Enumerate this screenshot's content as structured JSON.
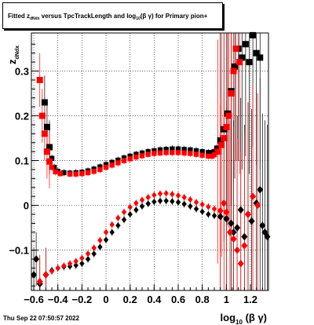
{
  "title": {
    "prefix": "Fitted  z",
    "sub1": "dNdx",
    "middle": " versus TpcTrackLength and log",
    "sub2": "10",
    "suffix": "(β  γ) for Primary pion+"
  },
  "footer": {
    "date": "Thu Sep 22 07:50:57 2022"
  },
  "chart_data": {
    "type": "scatter",
    "xlabel": "log10(β γ)",
    "ylabel": "zdNdx",
    "xlim": [
      -0.62,
      1.35
    ],
    "ylim": [
      -0.19,
      0.385
    ],
    "grid": true,
    "x_ticks": [
      -0.6,
      -0.4,
      -0.2,
      0,
      0.2,
      0.4,
      0.6,
      0.8,
      1,
      1.2
    ],
    "x_tick_labels": [
      "−0.6",
      "−0.4",
      "−0.2",
      "0",
      "0.2",
      "0.4",
      "0.6",
      "0.8",
      "1",
      "1.2"
    ],
    "y_ticks": [
      -0.1,
      0,
      0.1,
      0.2,
      0.3
    ],
    "y_tick_labels": [
      "−0.1",
      "0",
      "0.1",
      "0.2",
      "0.3"
    ],
    "series": [
      {
        "color": "#000000",
        "marker": "square",
        "points": [
          [
            -0.51,
            0.23
          ],
          [
            -0.49,
            0.175
          ],
          [
            -0.47,
            0.13
          ],
          [
            -0.45,
            0.105
          ],
          [
            -0.43,
            0.085
          ],
          [
            -0.4,
            0.076
          ],
          [
            -0.35,
            0.073
          ],
          [
            -0.3,
            0.072
          ],
          [
            -0.25,
            0.073
          ],
          [
            -0.2,
            0.074
          ],
          [
            -0.15,
            0.077
          ],
          [
            -0.1,
            0.081
          ],
          [
            -0.05,
            0.086
          ],
          [
            0,
            0.091
          ],
          [
            0.05,
            0.096
          ],
          [
            0.1,
            0.101
          ],
          [
            0.15,
            0.106
          ],
          [
            0.2,
            0.11
          ],
          [
            0.25,
            0.114
          ],
          [
            0.3,
            0.117
          ],
          [
            0.35,
            0.12
          ],
          [
            0.4,
            0.122
          ],
          [
            0.45,
            0.124
          ],
          [
            0.5,
            0.125
          ],
          [
            0.55,
            0.126
          ],
          [
            0.6,
            0.126
          ],
          [
            0.65,
            0.125
          ],
          [
            0.7,
            0.124
          ],
          [
            0.75,
            0.122
          ],
          [
            0.8,
            0.12
          ],
          [
            0.85,
            0.118
          ],
          [
            0.88,
            0.118
          ],
          [
            0.9,
            0.12
          ],
          [
            0.92,
            0.128
          ],
          [
            0.95,
            0.145
          ],
          [
            0.98,
            0.17
          ],
          [
            1.01,
            0.205
          ],
          [
            1.04,
            0.255
          ],
          [
            1.07,
            0.31
          ],
          [
            1.1,
            0.35
          ],
          [
            1.13,
            0.33
          ],
          [
            1.16,
            0.36
          ],
          [
            1.19,
            0.32
          ],
          [
            1.22,
            0.38
          ],
          [
            1.25,
            0.34
          ],
          [
            1.28,
            0.33
          ]
        ]
      },
      {
        "color": "#ff0000",
        "marker": "square",
        "points": [
          [
            -0.55,
            0.28
          ],
          [
            -0.53,
            0.2
          ],
          [
            -0.51,
            0.16
          ],
          [
            -0.49,
            0.12
          ],
          [
            -0.47,
            0.098
          ],
          [
            -0.45,
            0.085
          ],
          [
            -0.42,
            0.075
          ],
          [
            -0.38,
            0.071
          ],
          [
            -0.3,
            0.07
          ],
          [
            -0.25,
            0.07
          ],
          [
            -0.2,
            0.071
          ],
          [
            -0.15,
            0.073
          ],
          [
            -0.1,
            0.076
          ],
          [
            -0.05,
            0.08
          ],
          [
            0,
            0.085
          ],
          [
            0.05,
            0.09
          ],
          [
            0.1,
            0.095
          ],
          [
            0.15,
            0.1
          ],
          [
            0.2,
            0.104
          ],
          [
            0.25,
            0.108
          ],
          [
            0.3,
            0.111
          ],
          [
            0.35,
            0.114
          ],
          [
            0.4,
            0.116
          ],
          [
            0.45,
            0.117
          ],
          [
            0.5,
            0.118
          ],
          [
            0.55,
            0.118
          ],
          [
            0.6,
            0.118
          ],
          [
            0.65,
            0.117
          ],
          [
            0.7,
            0.116
          ],
          [
            0.75,
            0.114
          ],
          [
            0.8,
            0.112
          ],
          [
            0.85,
            0.11
          ],
          [
            0.88,
            0.11
          ],
          [
            0.9,
            0.113
          ],
          [
            0.93,
            0.12
          ],
          [
            0.96,
            0.135
          ],
          [
            0.98,
            0.15
          ],
          [
            1.0,
            0.175
          ],
          [
            1.02,
            0.2
          ],
          [
            1.04,
            0.25
          ],
          [
            1.06,
            0.3
          ],
          [
            1.08,
            0.35
          ],
          [
            1.11,
            0.32
          ]
        ]
      },
      {
        "color": "#000000",
        "marker": "diamond",
        "points": [
          [
            -0.6,
            -0.155
          ],
          [
            -0.58,
            -0.12
          ],
          [
            -0.55,
            -0.175
          ],
          [
            -0.5,
            -0.155
          ],
          [
            -0.45,
            -0.145
          ],
          [
            -0.4,
            -0.14
          ],
          [
            -0.35,
            -0.137
          ],
          [
            -0.3,
            -0.136
          ],
          [
            -0.25,
            -0.134
          ],
          [
            -0.2,
            -0.13
          ],
          [
            -0.15,
            -0.12
          ],
          [
            -0.1,
            -0.108
          ],
          [
            -0.05,
            -0.093
          ],
          [
            0,
            -0.077
          ],
          [
            0.05,
            -0.06
          ],
          [
            0.1,
            -0.045
          ],
          [
            0.15,
            -0.032
          ],
          [
            0.2,
            -0.02
          ],
          [
            0.25,
            -0.01
          ],
          [
            0.3,
            -0.002
          ],
          [
            0.35,
            0.004
          ],
          [
            0.4,
            0.008
          ],
          [
            0.45,
            0.01
          ],
          [
            0.5,
            0.01
          ],
          [
            0.55,
            0.009
          ],
          [
            0.6,
            0.007
          ],
          [
            0.65,
            0.003
          ],
          [
            0.7,
            -0.002
          ],
          [
            0.75,
            -0.008
          ],
          [
            0.8,
            -0.014
          ],
          [
            0.85,
            -0.02
          ],
          [
            0.9,
            -0.023
          ],
          [
            0.95,
            -0.025
          ],
          [
            1.0,
            -0.03
          ],
          [
            1.04,
            -0.04
          ],
          [
            1.06,
            -0.06
          ],
          [
            1.09,
            -0.05
          ],
          [
            1.12,
            -0.01
          ],
          [
            1.15,
            -0.07
          ],
          [
            1.18,
            -0.02
          ],
          [
            1.21,
            -0.035
          ],
          [
            1.25,
            0.005
          ],
          [
            1.28,
            0.035
          ],
          [
            1.3,
            -0.045
          ],
          [
            1.32,
            -0.06
          ],
          [
            1.34,
            -0.07
          ]
        ]
      },
      {
        "color": "#ff0000",
        "marker": "diamond",
        "points": [
          [
            -0.55,
            -0.17
          ],
          [
            -0.5,
            -0.155
          ],
          [
            -0.45,
            -0.147
          ],
          [
            -0.4,
            -0.14
          ],
          [
            -0.35,
            -0.135
          ],
          [
            -0.3,
            -0.13
          ],
          [
            -0.25,
            -0.125
          ],
          [
            -0.2,
            -0.118
          ],
          [
            -0.15,
            -0.108
          ],
          [
            -0.1,
            -0.095
          ],
          [
            -0.05,
            -0.078
          ],
          [
            0,
            -0.06
          ],
          [
            0.05,
            -0.043
          ],
          [
            0.1,
            -0.028
          ],
          [
            0.15,
            -0.015
          ],
          [
            0.2,
            -0.004
          ],
          [
            0.25,
            0.005
          ],
          [
            0.3,
            0.012
          ],
          [
            0.35,
            0.018
          ],
          [
            0.4,
            0.023
          ],
          [
            0.45,
            0.026
          ],
          [
            0.5,
            0.027
          ],
          [
            0.55,
            0.025
          ],
          [
            0.6,
            0.022
          ],
          [
            0.65,
            0.018
          ],
          [
            0.7,
            0.013
          ],
          [
            0.75,
            0.007
          ],
          [
            0.8,
            0.002
          ],
          [
            0.85,
            -0.003
          ],
          [
            0.9,
            -0.008
          ],
          [
            0.95,
            -0.012
          ],
          [
            0.98,
            0.005
          ],
          [
            1.0,
            -0.015
          ],
          [
            1.03,
            -0.06
          ],
          [
            1.06,
            -0.075
          ],
          [
            1.09,
            -0.1
          ],
          [
            1.12,
            -0.13
          ],
          [
            1.15,
            -0.09
          ],
          [
            1.18,
            -0.02
          ],
          [
            1.22,
            0.02
          ],
          [
            1.26,
            0.0
          ]
        ]
      }
    ]
  }
}
